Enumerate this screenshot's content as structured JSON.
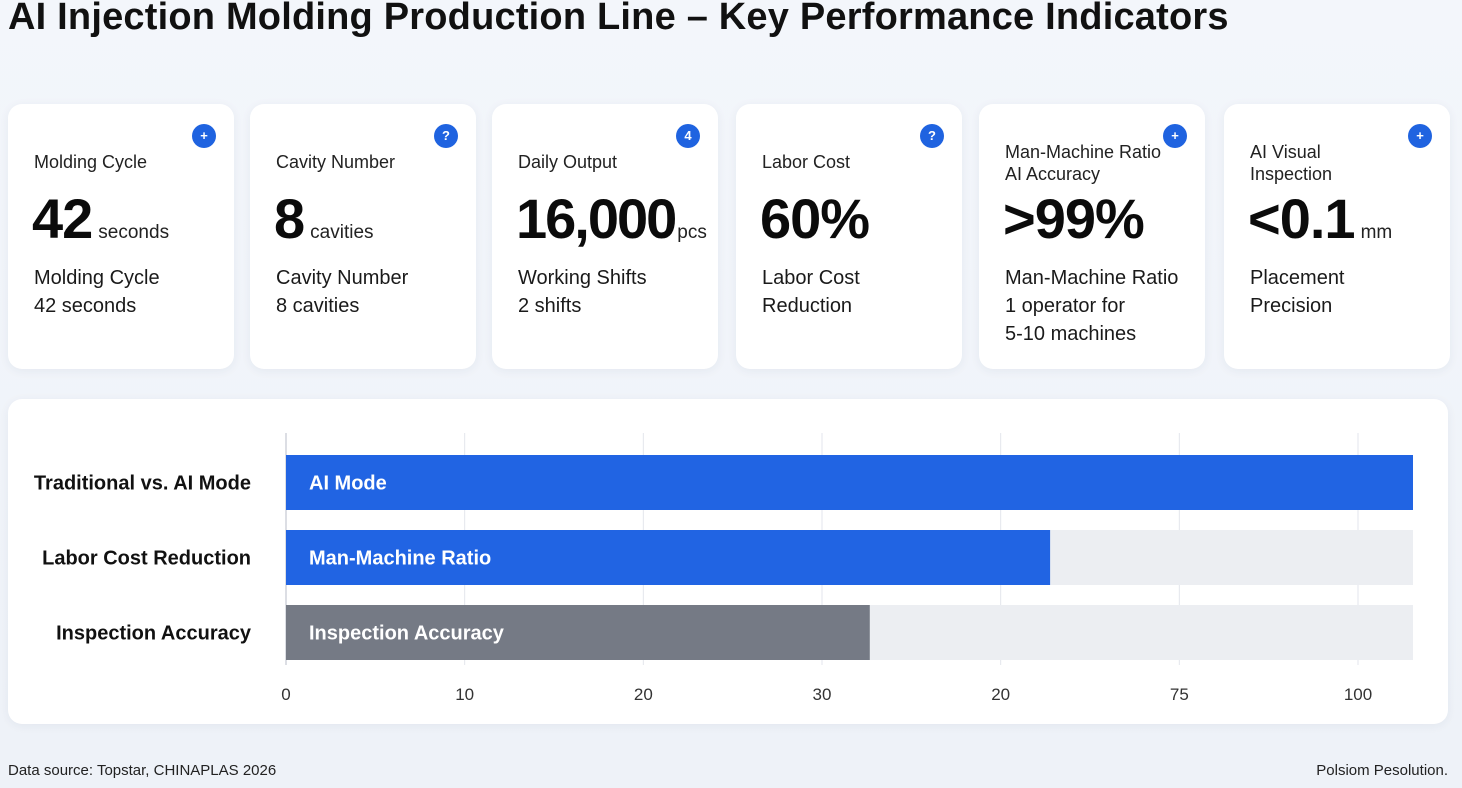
{
  "title": "AI Injection Molding Production Line – Key Performance Indicators",
  "cards": [
    {
      "badge": "+",
      "label": "Molding Cycle",
      "value": "42",
      "unit": "seconds",
      "desc": [
        "Molding Cycle",
        "42 seconds"
      ]
    },
    {
      "badge": "?",
      "label": "Cavity Number",
      "value": "8",
      "unit": "cavities",
      "desc": [
        "Cavity Number",
        "8 cavities"
      ]
    },
    {
      "badge": "4",
      "label": "Daily Output",
      "value": "16,000",
      "unit": "pcs",
      "desc": [
        "Working Shifts",
        "2 shifts"
      ]
    },
    {
      "badge": "?",
      "label": "Labor Cost",
      "value": "60%",
      "unit": "",
      "desc": [
        "Labor Cost",
        "Reduction"
      ]
    },
    {
      "badge": "+",
      "label": "Man-Machine Ratio\nAI Accuracy",
      "value": ">99%",
      "unit": "",
      "desc": [
        "Man-Machine Ratio",
        "1 operator for",
        "5-10 machines"
      ]
    },
    {
      "badge": "+",
      "label": "AI Visual\nInspection",
      "value": "<0.1",
      "unit": "mm",
      "desc": [
        "Placement",
        "Precision"
      ]
    }
  ],
  "chart_data": {
    "type": "bar",
    "orientation": "horizontal",
    "categories": [
      "Traditional vs. AI Mode",
      "Labor Cost Reduction",
      "Inspection Accuracy"
    ],
    "bar_labels": [
      "AI Mode",
      "Man-Machine Ratio",
      "Inspection Accuracy"
    ],
    "values": [
      100,
      67.8,
      51.8
    ],
    "track_max": 100,
    "bar_colors": [
      "#2164e3",
      "#2164e3",
      "#757a85"
    ],
    "x_tick_labels": [
      "0",
      "10",
      "20",
      "30",
      "20",
      "75",
      "100"
    ],
    "grid": true
  },
  "footer": {
    "source": "Data source: Topstar, CHINAPLAS 2026",
    "credit": "Polsiom Pesolution."
  }
}
